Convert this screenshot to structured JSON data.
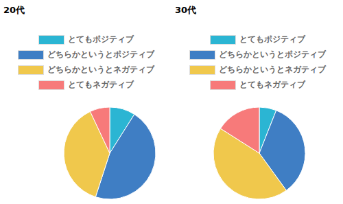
{
  "chart_data": [
    {
      "type": "pie",
      "title": "20代",
      "categories": [
        "とてもポジティブ",
        "どちらかというとポジティブ",
        "どちらかというとネガティブ",
        "とてもネガティブ"
      ],
      "values": [
        9,
        46,
        38,
        7
      ],
      "colors": [
        "#2bb5d3",
        "#3f7ec4",
        "#f0c84c",
        "#f77a7a"
      ]
    },
    {
      "type": "pie",
      "title": "30代",
      "categories": [
        "とてもポジティブ",
        "どちらかというとポジティブ",
        "どちらかというとネガティブ",
        "とてもネガティブ"
      ],
      "values": [
        6,
        34,
        44,
        16
      ],
      "colors": [
        "#2bb5d3",
        "#3f7ec4",
        "#f0c84c",
        "#f77a7a"
      ]
    }
  ]
}
